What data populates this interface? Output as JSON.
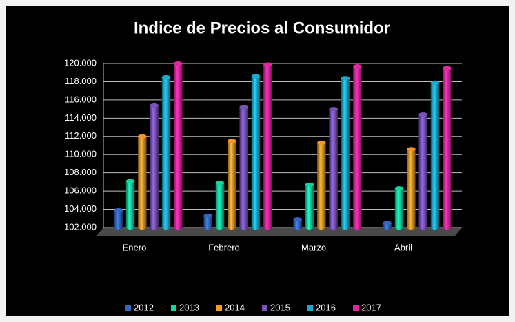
{
  "chart_data": {
    "type": "bar3d",
    "title": "Indice de Precios al Consumidor",
    "categories": [
      "Enero",
      "Febrero",
      "Marzo",
      "Abril"
    ],
    "series": [
      {
        "name": "2012",
        "color": "#3566c0",
        "values": [
          103.9,
          103.3,
          102.9,
          102.5
        ]
      },
      {
        "name": "2013",
        "color": "#12d69e",
        "values": [
          107.1,
          106.9,
          106.7,
          106.3
        ]
      },
      {
        "name": "2014",
        "color": "#f7962b",
        "values": [
          112.0,
          111.5,
          111.3,
          110.6
        ]
      },
      {
        "name": "2015",
        "color": "#7b52bb",
        "values": [
          115.4,
          115.2,
          115.0,
          114.4
        ]
      },
      {
        "name": "2016",
        "color": "#1ca9ca",
        "values": [
          118.5,
          118.6,
          118.4,
          117.9
        ]
      },
      {
        "name": "2017",
        "color": "#e2289d",
        "values": [
          120.0,
          119.9,
          119.7,
          119.5
        ]
      }
    ],
    "ylim": [
      102,
      120
    ],
    "yticks": [
      {
        "value": 102,
        "label": "102.000"
      },
      {
        "value": 104,
        "label": "104.000"
      },
      {
        "value": 106,
        "label": "106.000"
      },
      {
        "value": 108,
        "label": "108.000"
      },
      {
        "value": 110,
        "label": "110.000"
      },
      {
        "value": 112,
        "label": "112.000"
      },
      {
        "value": 114,
        "label": "114.000"
      },
      {
        "value": 116,
        "label": "116.000"
      },
      {
        "value": 118,
        "label": "118.000"
      },
      {
        "value": 120,
        "label": "120.000"
      }
    ],
    "grid": true,
    "legend": "bottom"
  }
}
